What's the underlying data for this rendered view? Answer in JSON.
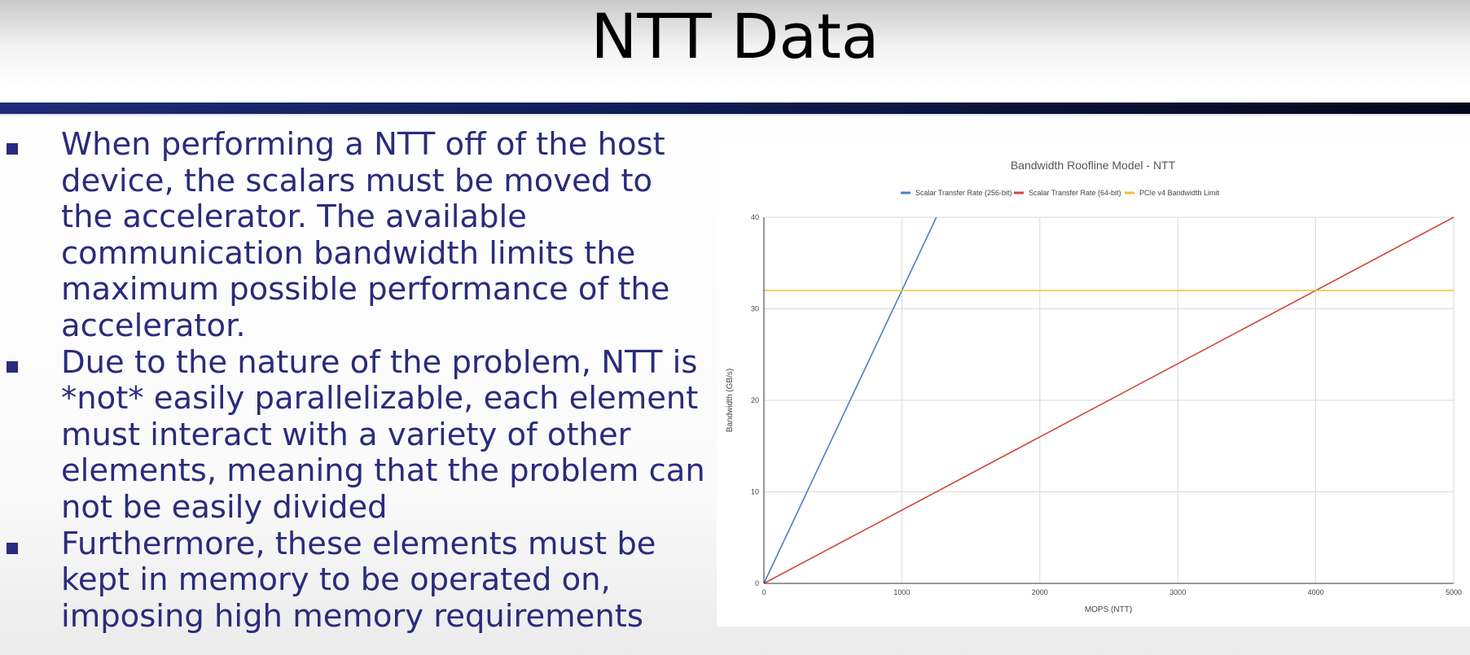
{
  "slide": {
    "title": "NTT Data",
    "bullets": [
      "When performing a NTT off of the host device, the scalars must be moved to the accelerator. The available communication bandwidth limits the maximum possible performance of the accelerator.",
      "Due to the nature of the problem, NTT is *not* easily parallelizable, each element must interact with a variety of other elements, meaning that the problem can not be easily divided",
      "Furthermore, these elements must be kept in memory to be operated on, imposing high memory requirements"
    ]
  },
  "chart_data": {
    "type": "line",
    "title": "Bandwidth Roofline Model - NTT",
    "xlabel": "MOPS (NTT)",
    "ylabel": "Bandwidth (GB/s)",
    "xlim": [
      0,
      5000
    ],
    "ylim": [
      0,
      40
    ],
    "xticks": [
      "0",
      "1000",
      "2000",
      "3000",
      "4000",
      "5000"
    ],
    "yticks": [
      "0",
      "10",
      "20",
      "30",
      "40"
    ],
    "grid": true,
    "legend_position": "top",
    "series": [
      {
        "name": "Scalar Transfer Rate (256-bit)",
        "color": "#4a7fc1",
        "x": [
          0,
          1250
        ],
        "y": [
          0,
          40
        ]
      },
      {
        "name": "Scalar Transfer Rate (64-bit)",
        "color": "#d2473b",
        "x": [
          0,
          5000
        ],
        "y": [
          0,
          40
        ]
      },
      {
        "name": "PCIe v4 Bandwidth Limit",
        "color": "#f2c12e",
        "x": [
          0,
          5000
        ],
        "y": [
          32,
          32
        ]
      }
    ]
  }
}
